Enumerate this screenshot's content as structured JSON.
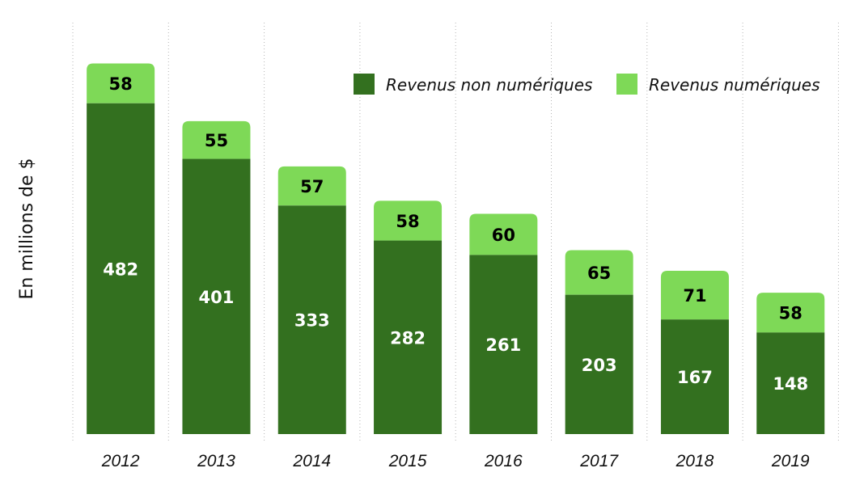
{
  "chart_data": {
    "type": "bar",
    "stacked": true,
    "title": "",
    "xlabel": "",
    "ylabel": "En millions de $",
    "ylim": [
      0,
      560
    ],
    "grid": "vertical dotted separators",
    "legend_position": "top-right",
    "categories": [
      "2012",
      "2013",
      "2014",
      "2015",
      "2016",
      "2017",
      "2018",
      "2019"
    ],
    "series": [
      {
        "name": "Revenus non numériques",
        "color": "#33701f",
        "label_color": "#ffffff",
        "values": [
          482,
          401,
          333,
          282,
          261,
          203,
          167,
          148
        ]
      },
      {
        "name": "Revenus numériques",
        "color": "#7ed957",
        "label_color": "#000000",
        "values": [
          58,
          55,
          57,
          58,
          60,
          65,
          71,
          58
        ]
      }
    ]
  }
}
